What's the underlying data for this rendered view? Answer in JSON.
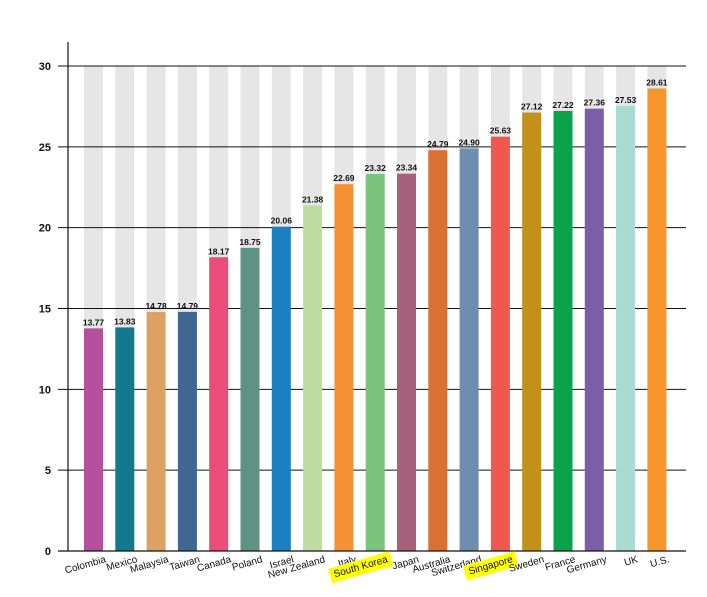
{
  "chart_data": {
    "type": "bar",
    "title": "",
    "xlabel": "",
    "ylabel": "",
    "ylim": [
      0,
      30
    ],
    "yticks": [
      "0",
      "5",
      "10",
      "15",
      "20",
      "25",
      "30"
    ],
    "grid": true,
    "background_bars": true,
    "categories": [
      "Colombia",
      "Mexico",
      "Malaysia",
      "Taiwan",
      "Canada",
      "Poland",
      "Israel",
      "New Zealand",
      "Italy",
      "South Korea",
      "Japan",
      "Australia",
      "Switzerland",
      "Singapore",
      "Sweden",
      "France",
      "Germany",
      "UK",
      "U.S."
    ],
    "values": [
      13.77,
      13.83,
      14.78,
      14.79,
      18.17,
      18.75,
      20.06,
      21.38,
      22.69,
      23.32,
      23.34,
      24.79,
      24.9,
      25.63,
      27.12,
      27.22,
      27.36,
      27.53,
      28.61
    ],
    "value_labels": [
      "13.77",
      "13.83",
      "14.78",
      "14.79",
      "18.17",
      "18.75",
      "20.06",
      "21.38",
      "22.69",
      "23.32",
      "23.34",
      "24.79",
      "24.90",
      "25.63",
      "27.12",
      "27.22",
      "27.36",
      "27.53",
      "28.61"
    ],
    "colors": [
      "#b5509c",
      "#127a8c",
      "#dba264",
      "#3f6790",
      "#ea4d78",
      "#5e9383",
      "#1b7fc2",
      "#c0dda1",
      "#f59033",
      "#7cc47e",
      "#a8607a",
      "#da7031",
      "#6f8daf",
      "#ef5850",
      "#c39019",
      "#0aa34b",
      "#7b5ea8",
      "#a8dcd1",
      "#f7962d"
    ],
    "background_color": "#e6e6e7",
    "highlighted_categories": [
      "South Korea",
      "Singapore"
    ],
    "highlight_color": "#ffff00"
  }
}
